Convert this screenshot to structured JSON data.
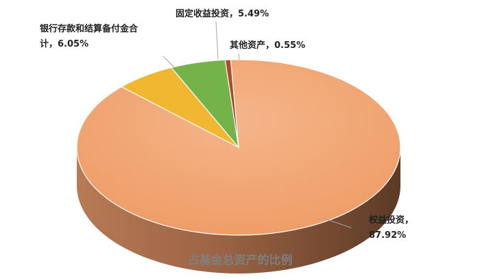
{
  "chart_data": {
    "type": "pie",
    "title": "占基金总资产的比例",
    "slices": [
      {
        "name": "权益投资",
        "value": 87.92,
        "label_lines": [
          "权益投资，",
          "87.92%"
        ],
        "color": "#f0a06a",
        "side_color": "#7a4a30"
      },
      {
        "name": "银行存款和结算备付金合计",
        "value": 6.05,
        "label_lines": [
          "银行存款和结算备付金合",
          "计，6.05%"
        ],
        "color": "#f2b731",
        "side_color": "#b07f1b"
      },
      {
        "name": "固定收益投资",
        "value": 5.49,
        "label_lines": [
          "固定收益投资，5.49%"
        ],
        "color": "#74b24a",
        "side_color": "#4d7a31"
      },
      {
        "name": "其他资产",
        "value": 0.55,
        "label_lines": [
          "其他资产，0.55%"
        ],
        "color": "#b04a2a",
        "side_color": "#6e2e1a"
      }
    ]
  }
}
